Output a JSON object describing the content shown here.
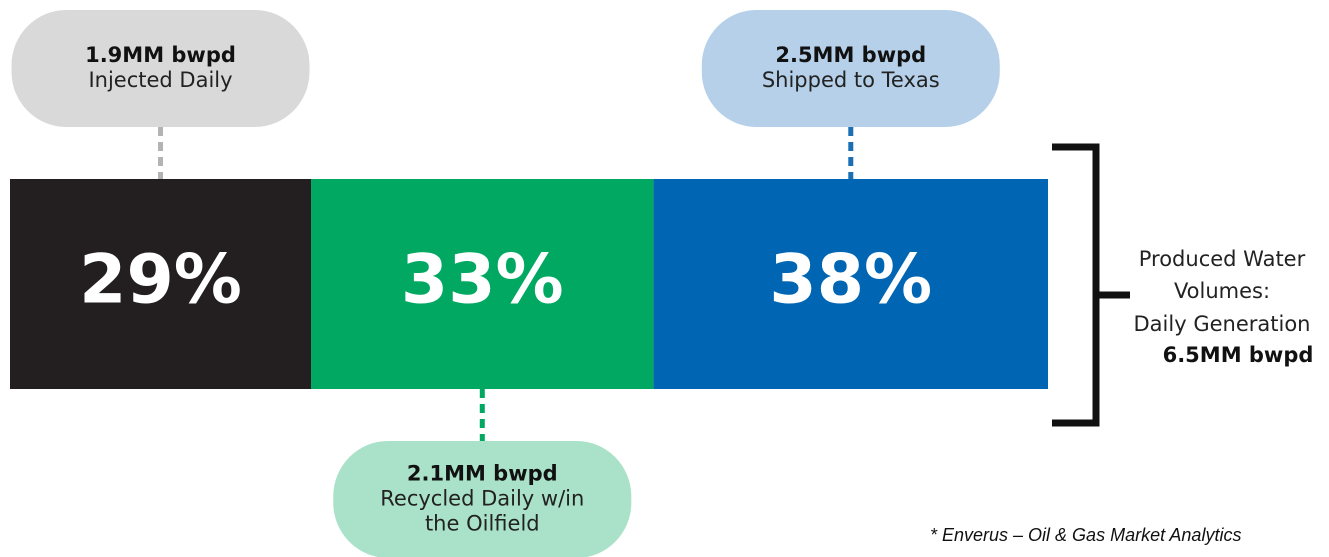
{
  "chart_data": {
    "type": "stacked-bar",
    "values": [
      29,
      33,
      38
    ],
    "value_labels": [
      "29%",
      "33%",
      "38%"
    ],
    "colors": [
      "#231f20",
      "#00a862",
      "#0066b3"
    ],
    "callouts": [
      {
        "value": "1.9MM bwpd",
        "text": [
          "Injected Daily"
        ],
        "color": "#d9d9d9",
        "line_color": "#b3b3b3"
      },
      {
        "value": "2.1MM bwpd",
        "text": [
          "Recycled Daily w/in",
          "the Oilfield"
        ],
        "color": "#a9e2c8",
        "line_color": "#00a862"
      },
      {
        "value": "2.5MM bwpd",
        "text": [
          "Shipped to Texas"
        ],
        "color": "#b5d0e8",
        "line_color": "#1a6fb5"
      }
    ],
    "total_label": [
      "Produced Water",
      "Volumes:",
      "Daily Generation"
    ],
    "total_value": "6.5MM bwpd",
    "footnote": "* Enverus – Oil & Gas Market Analytics"
  }
}
